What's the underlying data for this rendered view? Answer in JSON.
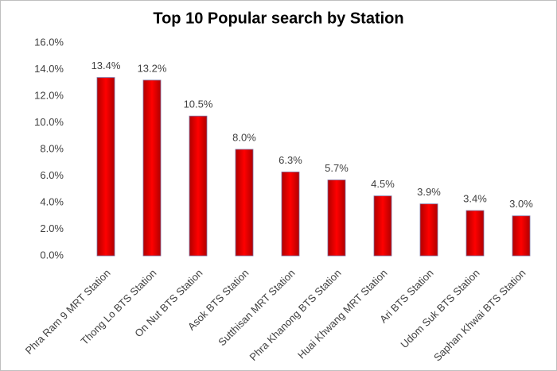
{
  "chart_data": {
    "type": "bar",
    "title": "Top 10 Popular search by Station",
    "categories": [
      "Phra Ram 9 MRT Station",
      "Thong Lo BTS Station",
      "On Nut BTS Station",
      "Asok BTS Station",
      "Sutthisan MRT Station",
      "Phra Khanong BTS Station",
      "Huai Khwang MRT Station",
      "Ari BTS Station",
      "Udom Suk BTS Station",
      "Saphan Khwai BTS Station"
    ],
    "values": [
      13.4,
      13.2,
      10.5,
      8.0,
      6.3,
      5.7,
      4.5,
      3.9,
      3.4,
      3.0
    ],
    "value_labels": [
      "13.4%",
      "13.2%",
      "10.5%",
      "8.0%",
      "6.3%",
      "5.7%",
      "4.5%",
      "3.9%",
      "3.4%",
      "3.0%"
    ],
    "color": "#ff0000",
    "ylim": [
      0,
      16
    ],
    "yticks": [
      {
        "value": 0,
        "label": "0.0%"
      },
      {
        "value": 2,
        "label": "2.0%"
      },
      {
        "value": 4,
        "label": "4.0%"
      },
      {
        "value": 6,
        "label": "6.0%"
      },
      {
        "value": 8,
        "label": "8.0%"
      },
      {
        "value": 10,
        "label": "10.0%"
      },
      {
        "value": 12,
        "label": "12.0%"
      },
      {
        "value": 14,
        "label": "14.0%"
      },
      {
        "value": 16,
        "label": "16.0%"
      }
    ],
    "grid": false
  }
}
